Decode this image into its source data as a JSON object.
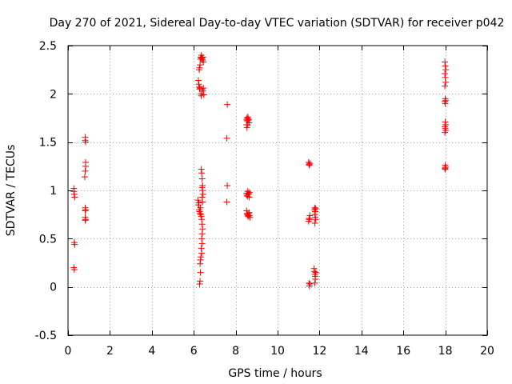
{
  "colors": {
    "series": "#ff0000",
    "grid": "#a0a0a0",
    "axis": "#000000"
  },
  "chart_data": {
    "type": "scatter",
    "title": "Day 270 of 2021, Sidereal Day-to-day VTEC variation (SDTVAR) for receiver p042",
    "xlabel": "GPS time / hours",
    "ylabel": "SDTVAR / TECUs",
    "xlim": [
      0,
      20
    ],
    "ylim": [
      -0.5,
      2.5
    ],
    "xticks": [
      0,
      2,
      4,
      6,
      8,
      10,
      12,
      14,
      16,
      18,
      20
    ],
    "yticks": [
      -0.5,
      0,
      0.5,
      1,
      1.5,
      2,
      2.5
    ],
    "xtick_labels": [
      "0",
      "2",
      "4",
      "6",
      "8",
      "10",
      "12",
      "14",
      "16",
      "18",
      "20"
    ],
    "ytick_labels": [
      "-0.5",
      "0",
      "0.5",
      "1",
      "1.5",
      "2",
      "2.5"
    ],
    "grid": true,
    "marker": "plus",
    "series": [
      {
        "name": "SDTVAR",
        "points": [
          [
            0.28,
            1.02
          ],
          [
            0.28,
            0.99
          ],
          [
            0.3,
            0.96
          ],
          [
            0.32,
            0.93
          ],
          [
            0.3,
            0.46
          ],
          [
            0.32,
            0.44
          ],
          [
            0.28,
            0.2
          ],
          [
            0.3,
            0.18
          ],
          [
            0.82,
            1.55
          ],
          [
            0.82,
            1.52
          ],
          [
            0.84,
            1.5
          ],
          [
            0.84,
            1.29
          ],
          [
            0.84,
            1.25
          ],
          [
            0.82,
            1.2
          ],
          [
            0.8,
            1.14
          ],
          [
            0.82,
            0.82
          ],
          [
            0.84,
            0.8
          ],
          [
            0.82,
            0.79
          ],
          [
            0.82,
            0.72
          ],
          [
            0.84,
            0.7
          ],
          [
            0.82,
            0.69
          ],
          [
            6.26,
            2.25
          ],
          [
            6.28,
            2.27
          ],
          [
            6.3,
            2.3
          ],
          [
            6.32,
            2.36
          ],
          [
            6.34,
            2.38
          ],
          [
            6.36,
            2.4
          ],
          [
            6.38,
            2.37
          ],
          [
            6.4,
            2.36
          ],
          [
            6.42,
            2.35
          ],
          [
            6.44,
            2.38
          ],
          [
            6.46,
            2.33
          ],
          [
            6.22,
            2.14
          ],
          [
            6.24,
            2.1
          ],
          [
            6.26,
            2.07
          ],
          [
            6.28,
            2.05
          ],
          [
            6.3,
            2.06
          ],
          [
            6.34,
            2.0
          ],
          [
            6.36,
            1.98
          ],
          [
            6.4,
            2.05
          ],
          [
            6.44,
            2.03
          ],
          [
            6.46,
            2.06
          ],
          [
            6.48,
            1.99
          ],
          [
            6.2,
            0.9
          ],
          [
            6.22,
            0.85
          ],
          [
            6.24,
            0.87
          ],
          [
            6.26,
            0.8
          ],
          [
            6.28,
            0.78
          ],
          [
            6.3,
            0.76
          ],
          [
            6.32,
            0.82
          ],
          [
            6.34,
            0.75
          ],
          [
            6.36,
            0.73
          ],
          [
            6.38,
            0.7
          ],
          [
            6.36,
            1.22
          ],
          [
            6.38,
            1.18
          ],
          [
            6.4,
            1.12
          ],
          [
            6.42,
            1.05
          ],
          [
            6.4,
            1.03
          ],
          [
            6.42,
            1.0
          ],
          [
            6.44,
            0.96
          ],
          [
            6.4,
            0.93
          ],
          [
            6.42,
            0.88
          ],
          [
            6.4,
            0.65
          ],
          [
            6.42,
            0.6
          ],
          [
            6.4,
            0.55
          ],
          [
            6.38,
            0.5
          ],
          [
            6.4,
            0.45
          ],
          [
            6.36,
            0.4
          ],
          [
            6.38,
            0.35
          ],
          [
            6.34,
            0.31
          ],
          [
            6.32,
            0.28
          ],
          [
            6.3,
            0.24
          ],
          [
            6.32,
            0.15
          ],
          [
            6.3,
            0.06
          ],
          [
            6.28,
            0.03
          ],
          [
            7.6,
            1.89
          ],
          [
            7.58,
            1.54
          ],
          [
            7.6,
            1.05
          ],
          [
            7.58,
            0.88
          ],
          [
            8.52,
            1.73
          ],
          [
            8.54,
            1.75
          ],
          [
            8.56,
            1.72
          ],
          [
            8.58,
            1.76
          ],
          [
            8.6,
            1.74
          ],
          [
            8.62,
            1.73
          ],
          [
            8.64,
            1.7
          ],
          [
            8.52,
            1.68
          ],
          [
            8.54,
            1.65
          ],
          [
            8.58,
            1.68
          ],
          [
            8.52,
            0.97
          ],
          [
            8.54,
            0.95
          ],
          [
            8.56,
            0.94
          ],
          [
            8.58,
            0.99
          ],
          [
            8.6,
            0.97
          ],
          [
            8.62,
            0.96
          ],
          [
            8.64,
            0.93
          ],
          [
            8.66,
            0.98
          ],
          [
            8.52,
            0.79
          ],
          [
            8.54,
            0.76
          ],
          [
            8.56,
            0.75
          ],
          [
            8.58,
            0.74
          ],
          [
            8.6,
            0.73
          ],
          [
            8.62,
            0.76
          ],
          [
            8.64,
            0.77
          ],
          [
            8.66,
            0.74
          ],
          [
            8.68,
            0.72
          ],
          [
            11.48,
            1.29
          ],
          [
            11.5,
            1.27
          ],
          [
            11.52,
            1.26
          ],
          [
            11.54,
            1.28
          ],
          [
            11.48,
            0.68
          ],
          [
            11.5,
            0.71
          ],
          [
            11.52,
            0.7
          ],
          [
            11.54,
            0.74
          ],
          [
            11.5,
            0.04
          ],
          [
            11.52,
            0.01
          ],
          [
            11.54,
            0.03
          ],
          [
            11.76,
            0.8
          ],
          [
            11.78,
            0.82
          ],
          [
            11.8,
            0.78
          ],
          [
            11.82,
            0.81
          ],
          [
            11.78,
            0.75
          ],
          [
            11.8,
            0.72
          ],
          [
            11.82,
            0.7
          ],
          [
            11.78,
            0.66
          ],
          [
            11.74,
            0.19
          ],
          [
            11.76,
            0.16
          ],
          [
            11.78,
            0.13
          ],
          [
            11.8,
            0.11
          ],
          [
            11.82,
            0.15
          ],
          [
            11.8,
            0.08
          ],
          [
            11.78,
            0.04
          ],
          [
            17.98,
            2.33
          ],
          [
            18.0,
            2.29
          ],
          [
            18.02,
            2.25
          ],
          [
            17.98,
            2.21
          ],
          [
            18.0,
            2.17
          ],
          [
            18.02,
            2.12
          ],
          [
            17.98,
            2.08
          ],
          [
            18.0,
            1.95
          ],
          [
            18.02,
            1.93
          ],
          [
            17.98,
            1.92
          ],
          [
            18.0,
            1.9
          ],
          [
            18.0,
            1.71
          ],
          [
            18.02,
            1.68
          ],
          [
            17.98,
            1.66
          ],
          [
            18.0,
            1.64
          ],
          [
            18.02,
            1.62
          ],
          [
            17.98,
            1.6
          ],
          [
            18.0,
            1.26
          ],
          [
            18.02,
            1.24
          ],
          [
            17.98,
            1.23
          ],
          [
            18.0,
            1.22
          ]
        ]
      }
    ]
  }
}
